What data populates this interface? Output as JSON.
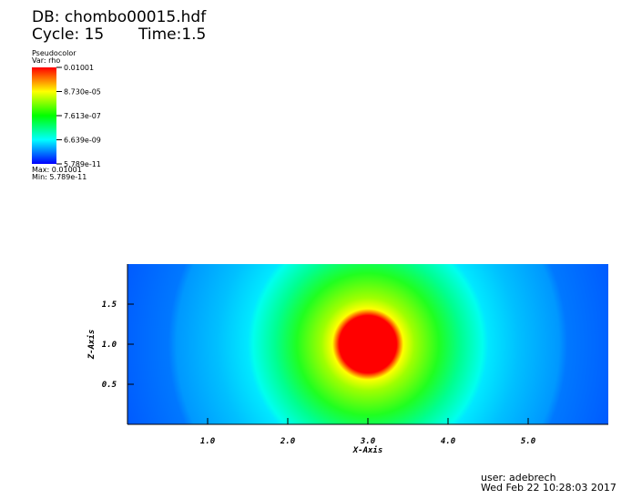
{
  "header": {
    "database": "DB: chombo00015.hdf",
    "cycle": "Cycle: 15",
    "time": "Time:1.5"
  },
  "legend": {
    "plot": "Pseudocolor",
    "variable": "Var: rho",
    "scale": "log",
    "range": [
      5.789e-11,
      0.01001
    ],
    "ticks": [
      0.01001,
      {
        "value": 8.73e-05,
        "label": "8.730e-05"
      },
      {
        "value": 7.613e-07,
        "label": "7.613e-07"
      },
      {
        "value": 6.639e-09,
        "label": "6.639e-09"
      },
      {
        "value": 5.789e-11,
        "label": "5.789e-11"
      }
    ],
    "max": "Max: 0.01001",
    "min": "Min: 5.789e-11"
  },
  "chart_data": {
    "type": "pseudocolor",
    "xlabel": "X-Axis",
    "ylabel": "Z-Axis",
    "xlim": [
      0,
      6
    ],
    "ylim": [
      0,
      2
    ],
    "xticks": [
      {
        "value": 1,
        "label": "1.0"
      },
      {
        "value": 2,
        "label": "2.0"
      },
      {
        "value": 3,
        "label": "3.0"
      },
      {
        "value": 4,
        "label": "4.0"
      },
      {
        "value": 5,
        "label": "5.0"
      }
    ],
    "yticks": [
      0.5,
      {
        "value": 1,
        "label": "1.0"
      },
      1.5
    ]
  },
  "footer": {
    "user": "user: adebrech",
    "date": "Wed Feb 22 10:28:03 2017"
  }
}
